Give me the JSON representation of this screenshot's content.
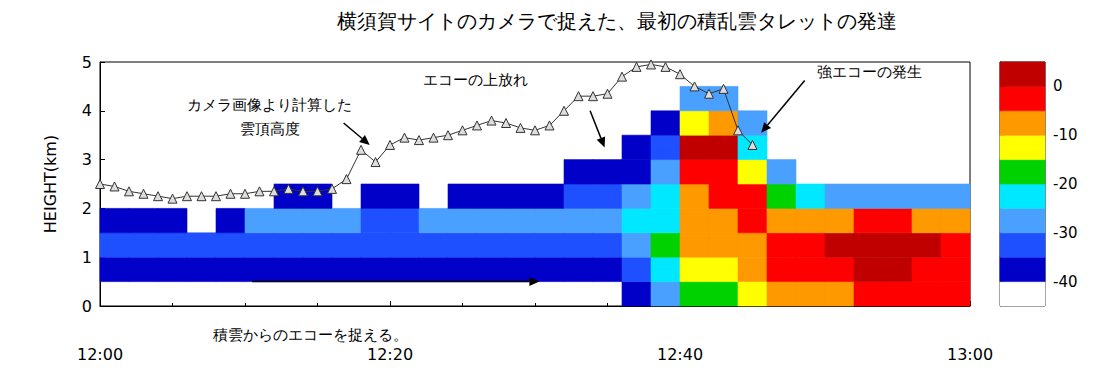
{
  "chart_data": {
    "type": "heatmap",
    "title": "横須賀サイトのカメラで捉えた、最初の積乱雲タレットの発達",
    "ylabel": "HEIGHT(km)",
    "xlim": [
      0,
      60
    ],
    "xticks": [
      {
        "value": 0,
        "label": "12:00"
      },
      {
        "value": 20,
        "label": "12:20"
      },
      {
        "value": 40,
        "label": "12:40"
      },
      {
        "value": 60,
        "label": "13:00"
      }
    ],
    "ylim": [
      0,
      5
    ],
    "yticks": [
      0,
      1,
      2,
      3,
      4,
      5
    ],
    "grid": false,
    "heatmap": {
      "x_edges": [
        0,
        2,
        4,
        6,
        8,
        10,
        12,
        14,
        16,
        18,
        20,
        22,
        24,
        26,
        28,
        30,
        32,
        34,
        36,
        38,
        40,
        42,
        44,
        46,
        48,
        50,
        52,
        54,
        56,
        58,
        60
      ],
      "y_edges": [
        0,
        0.5,
        1,
        1.5,
        2,
        2.5,
        3,
        3.5,
        4,
        4.5
      ],
      "z": [
        [
          null,
          -38,
          -35,
          -40,
          null,
          null,
          null,
          null,
          null
        ],
        [
          null,
          -38,
          -35,
          -40,
          null,
          null,
          null,
          null,
          null
        ],
        [
          null,
          -38,
          -35,
          -40,
          null,
          null,
          null,
          null,
          null
        ],
        [
          null,
          -38,
          -35,
          null,
          null,
          null,
          null,
          null,
          null
        ],
        [
          null,
          -38,
          -35,
          -38,
          null,
          null,
          null,
          null,
          null
        ],
        [
          null,
          -37,
          -33,
          -30,
          null,
          null,
          null,
          null,
          null
        ],
        [
          null,
          -37,
          -33,
          -29,
          -40,
          null,
          null,
          null,
          null
        ],
        [
          null,
          -36,
          -33,
          -29,
          -40,
          null,
          null,
          null,
          null
        ],
        [
          null,
          -36,
          -33,
          -30,
          null,
          null,
          null,
          null,
          null
        ],
        [
          null,
          -38,
          -34,
          -33,
          -40,
          null,
          null,
          null,
          null
        ],
        [
          null,
          -38,
          -34,
          -33,
          -40,
          null,
          null,
          null,
          null
        ],
        [
          null,
          -36,
          -33,
          -30,
          null,
          null,
          null,
          null,
          null
        ],
        [
          null,
          -36,
          -34,
          -30,
          -40,
          null,
          null,
          null,
          null
        ],
        [
          null,
          -36,
          -34,
          -30,
          -38,
          null,
          null,
          null,
          null
        ],
        [
          null,
          -36,
          -33,
          -29,
          -38,
          null,
          null,
          null,
          null
        ],
        [
          null,
          -37,
          -32,
          -29,
          -36,
          null,
          null,
          null,
          null
        ],
        [
          null,
          -37,
          -32,
          -28,
          -35,
          -40,
          null,
          null,
          null
        ],
        [
          null,
          -36,
          -31,
          -27,
          -32,
          -38,
          null,
          null,
          null
        ],
        [
          -38,
          -33,
          -27,
          -25,
          -29,
          -36,
          -40,
          null,
          null
        ],
        [
          -30,
          -22,
          -20,
          -22,
          -24,
          -27,
          -32,
          -38,
          null
        ],
        [
          -20,
          -12,
          -10,
          -10,
          -8,
          -4,
          2,
          -15,
          -30
        ],
        [
          -18,
          -12,
          -8,
          -6,
          -3,
          -2,
          0,
          -10,
          -28
        ],
        [
          -15,
          -10,
          -6,
          -2,
          -4,
          -12,
          -22,
          -30,
          null
        ],
        [
          -10,
          -4,
          -2,
          -6,
          -20,
          -26,
          null,
          null,
          null
        ],
        [
          -8,
          -2,
          -2,
          -8,
          -25,
          null,
          null,
          null,
          null
        ],
        [
          -6,
          -1,
          1,
          -6,
          -26,
          null,
          null,
          null,
          null
        ],
        [
          -4,
          0,
          1,
          -3,
          -26,
          null,
          null,
          null,
          null
        ],
        [
          -3,
          1,
          0,
          -4,
          -26,
          null,
          null,
          null,
          null
        ],
        [
          -4,
          -1,
          0,
          -6,
          -26,
          null,
          null,
          null,
          null
        ],
        [
          -5,
          -2,
          -3,
          -8,
          -26,
          null,
          null,
          null,
          null
        ]
      ]
    },
    "colorbar": {
      "bounds": [
        -45,
        -40,
        -35,
        -30,
        -25,
        -20,
        -15,
        -10,
        -5,
        0,
        5
      ],
      "colors": [
        "#ffffff",
        "#0000c8",
        "#1e50ff",
        "#4aa0ff",
        "#00e8ff",
        "#00d200",
        "#ffff00",
        "#ff9900",
        "#ff0000",
        "#c00000"
      ],
      "ticks": [
        0,
        -10,
        -20,
        -30,
        -40
      ]
    },
    "series": [
      {
        "type": "line",
        "color": "#333333",
        "marker": "triangle",
        "x": [
          0,
          1,
          2,
          3,
          4,
          5,
          6,
          7,
          8,
          9,
          10,
          11,
          12,
          13,
          14,
          15,
          16,
          17,
          18,
          19,
          20,
          21,
          22,
          23,
          24,
          25,
          26,
          27,
          28,
          29,
          30,
          31,
          32,
          33,
          34,
          35,
          36,
          37,
          38,
          39,
          40,
          41,
          42,
          43,
          44,
          45
        ],
        "values": [
          2.5,
          2.45,
          2.35,
          2.3,
          2.25,
          2.2,
          2.25,
          2.25,
          2.25,
          2.3,
          2.3,
          2.35,
          2.35,
          2.4,
          2.35,
          2.35,
          2.4,
          2.6,
          3.2,
          2.95,
          3.3,
          3.45,
          3.4,
          3.45,
          3.5,
          3.6,
          3.7,
          3.8,
          3.75,
          3.65,
          3.6,
          3.7,
          4.0,
          4.3,
          4.3,
          4.35,
          4.7,
          4.9,
          4.95,
          4.9,
          4.75,
          4.5,
          4.35,
          4.45,
          3.6,
          3.3
        ]
      }
    ],
    "annotations": [
      "カメラ画像より計算した\n雲頂高度",
      "エコーの上放れ",
      "強エコーの発生",
      "積雲からのエコーを捉える。"
    ]
  }
}
